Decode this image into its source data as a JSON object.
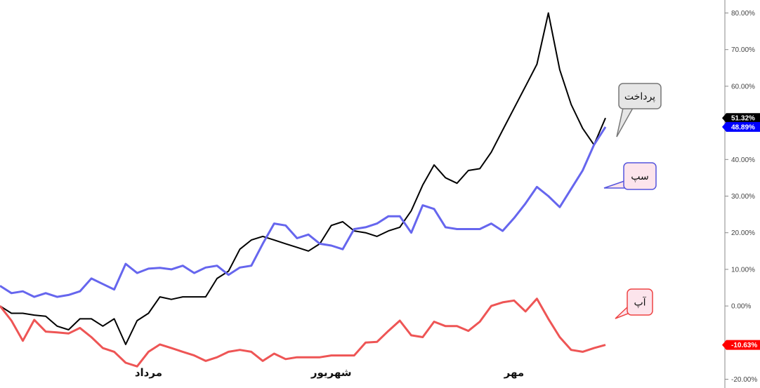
{
  "chart_data": {
    "type": "line",
    "title": "",
    "xlabel": "",
    "ylabel": "",
    "ylim": [
      -20,
      80
    ],
    "y_ticks": [
      "-20.00%",
      "-10.00%",
      "0.00%",
      "10.00%",
      "20.00%",
      "30.00%",
      "40.00%",
      "50.00%",
      "60.00%",
      "70.00%",
      "80.00%"
    ],
    "y_tick_values": [
      -20,
      -10,
      0,
      10,
      20,
      30,
      40,
      50,
      60,
      70,
      80
    ],
    "x_count": 54,
    "months": [
      {
        "label": "مرداد",
        "index": 13
      },
      {
        "label": "شهریور",
        "index": 29
      },
      {
        "label": "مهر",
        "index": 45
      }
    ],
    "grid": false,
    "series": [
      {
        "name": "پرداخت",
        "color": "#000000",
        "badge_color": "#000000",
        "callout_fill": "#e6e6e6",
        "callout_stroke": "#777777",
        "last_label": "51.32%",
        "values": [
          0,
          -2,
          -2,
          -2.5,
          -2.8,
          -5.5,
          -6.5,
          -3.5,
          -3.5,
          -5.5,
          -3.5,
          -10.5,
          -4,
          -2,
          2.5,
          1.8,
          2.5,
          2.5,
          2.5,
          7.5,
          9.5,
          15.5,
          18,
          19,
          18,
          17,
          16,
          15,
          17,
          22,
          23,
          20.5,
          20,
          19,
          20.5,
          21.5,
          26,
          33,
          38.5,
          35,
          33.5,
          37,
          37.5,
          42,
          48,
          54,
          60,
          66,
          80,
          64.5,
          55,
          48.5,
          44,
          51.32
        ]
      },
      {
        "name": "سپ",
        "color": "#6666ee",
        "badge_color": "#0000ff",
        "callout_fill": "#fce4ec",
        "callout_stroke": "#5555dd",
        "last_label": "48.89%",
        "values": [
          5.5,
          3.5,
          4,
          2.5,
          3.5,
          2.5,
          3,
          4,
          7.5,
          6,
          4.5,
          11.5,
          9,
          10.2,
          10.4,
          10,
          11,
          9,
          10.5,
          11,
          8.5,
          10.5,
          11,
          17,
          22.5,
          22,
          18.5,
          19.5,
          17,
          16.5,
          15.5,
          21,
          21.5,
          22.5,
          24.5,
          24.5,
          20,
          27.5,
          26.5,
          21.5,
          21,
          21,
          21,
          22.5,
          20.5,
          24,
          28,
          32.5,
          30,
          27,
          32,
          37,
          44,
          48.89
        ]
      },
      {
        "name": "آپ",
        "color": "#ee5555",
        "badge_color": "#ff0000",
        "callout_fill": "#fce4ec",
        "callout_stroke": "#ee4444",
        "last_label": "-10.63%",
        "values": [
          0,
          -4,
          -9.5,
          -3.8,
          -7,
          -7.2,
          -7.5,
          -6,
          -8.5,
          -11.5,
          -12.5,
          -15.5,
          -16.5,
          -12.5,
          -10.5,
          -11.5,
          -12.5,
          -13.5,
          -15,
          -14,
          -12.5,
          -12,
          -12.5,
          -15,
          -13,
          -14.5,
          -14,
          -14,
          -14,
          -13.5,
          -13.5,
          -13.5,
          -10,
          -9.8,
          -6.8,
          -4,
          -8,
          -8.5,
          -4.3,
          -5.5,
          -5.5,
          -6.8,
          -4.3,
          0,
          1,
          1.5,
          -1.5,
          2,
          -3.5,
          -8.5,
          -12,
          -12.5,
          -11.5,
          -10.63
        ]
      }
    ]
  }
}
